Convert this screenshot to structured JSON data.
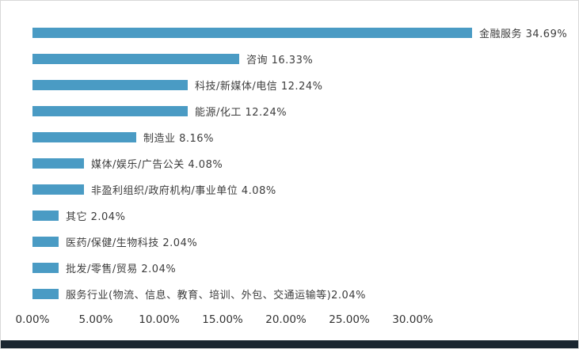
{
  "chart_data": {
    "type": "bar",
    "orientation": "horizontal",
    "title": "",
    "xlabel": "",
    "ylabel": "",
    "grid": false,
    "legend": "none",
    "xlim": [
      0,
      35
    ],
    "bar_color": "#4a9bc4",
    "categories": [
      "金融服务",
      "咨询",
      "科技/新媒体/电信",
      "能源/化工",
      "制造业",
      "媒体/娱乐/广告公关",
      "非盈利组织/政府机构/事业单位",
      "其它",
      "医药/保健/生物科技",
      "批发/零售/贸易",
      "服务行业(物流、信息、教育、培训、外包、交通运输等)"
    ],
    "values": [
      34.69,
      16.33,
      12.24,
      12.24,
      8.16,
      4.08,
      4.08,
      2.04,
      2.04,
      2.04,
      2.04
    ],
    "bar_labels": [
      "金融服务 34.69%",
      "咨询 16.33%",
      "科技/新媒体/电信 12.24%",
      "能源/化工 12.24%",
      "制造业 8.16%",
      "媒体/娱乐/广告公关 4.08%",
      "非盈利组织/政府机构/事业单位 4.08%",
      "其它 2.04%",
      "医药/保健/生物科技 2.04%",
      "批发/零售/贸易 2.04%",
      "服务行业(物流、信息、教育、培训、外包、交通运输等)2.04%"
    ],
    "x_ticks": [
      {
        "value": 0,
        "label": "0.00%"
      },
      {
        "value": 5,
        "label": "5.00%"
      },
      {
        "value": 10,
        "label": "10.00%"
      },
      {
        "value": 15,
        "label": "15.00%"
      },
      {
        "value": 20,
        "label": "20.00%"
      },
      {
        "value": 25,
        "label": "25.00%"
      },
      {
        "value": 30,
        "label": "30.00%"
      }
    ]
  },
  "decor": {
    "bottom_strip_color": "#1b2630"
  }
}
